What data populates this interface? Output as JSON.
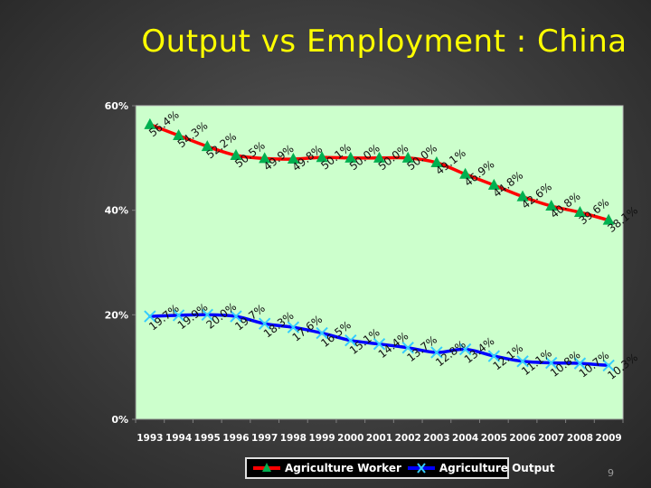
{
  "slide": {
    "title": "Output vs Employment : China",
    "page_number": "9"
  },
  "colors": {
    "plot_background": "#ccffcc",
    "worker_line": "#ff0000",
    "worker_marker": "#00b050",
    "output_line": "#0000ff",
    "output_marker": "#33ccff"
  },
  "chart_data": {
    "type": "line",
    "categories": [
      "1993",
      "1994",
      "1995",
      "1996",
      "1997",
      "1998",
      "1999",
      "2000",
      "2001",
      "2002",
      "2003",
      "2004",
      "2005",
      "2006",
      "2007",
      "2008",
      "2009"
    ],
    "ylim": [
      0,
      60
    ],
    "yticks": [
      0,
      20,
      40,
      60
    ],
    "ytick_labels": [
      "0%",
      "20%",
      "40%",
      "60%"
    ],
    "grid": false,
    "legend_position": "bottom",
    "series": [
      {
        "name": "Agriculture Worker",
        "marker": "triangle",
        "values": [
          56.4,
          54.3,
          52.2,
          50.5,
          49.9,
          49.8,
          50.1,
          50.0,
          50.0,
          50.0,
          49.1,
          46.9,
          44.8,
          42.6,
          40.8,
          39.6,
          38.1
        ],
        "labels": [
          "56.4%",
          "54.3%",
          "52.2%",
          "50.5%",
          "49.9%",
          "49.8%",
          "50.1%",
          "50.0%",
          "50.0%",
          "50.0%",
          "49.1%",
          "46.9%",
          "44.8%",
          "42.6%",
          "40.8%",
          "39.6%",
          "38.1%"
        ]
      },
      {
        "name": "Agriculture Output",
        "marker": "x",
        "values": [
          19.7,
          19.9,
          20.0,
          19.7,
          18.3,
          17.6,
          16.5,
          15.1,
          14.4,
          13.7,
          12.8,
          13.4,
          12.1,
          11.1,
          10.8,
          10.7,
          10.3
        ],
        "labels": [
          "19.7%",
          "19.9%",
          "20.0%",
          "19.7%",
          "18.3%",
          "17.6%",
          "16.5%",
          "15.1%",
          "14.4%",
          "13.7%",
          "12.8%",
          "13.4%",
          "12.1%",
          "11.1%",
          "10.8%",
          "10.7%",
          "10.3%"
        ]
      }
    ]
  }
}
